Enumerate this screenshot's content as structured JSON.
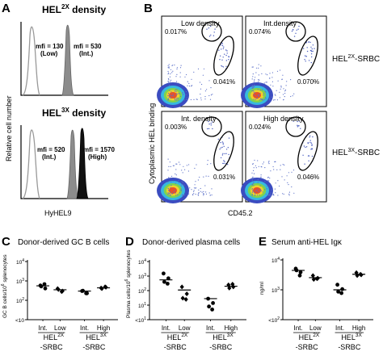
{
  "panels": {
    "A": {
      "letter": "A",
      "top": {
        "title": "HEL",
        "title_sup": "2X",
        "title_rest": " density",
        "mfi_low": "mfi = 130",
        "mfi_low_sub": "(Low)",
        "mfi_int": "mfi = 530",
        "mfi_int_sub": "(Int.)"
      },
      "bottom": {
        "title": "HEL",
        "title_sup": "3X",
        "title_rest": " density",
        "mfi_int": "mfi = 520",
        "mfi_int_sub": "(Int.)",
        "mfi_high": "mfi = 1570",
        "mfi_high_sub": "(High)"
      },
      "ylabel": "Relative cell number",
      "xlabel": "HyHEL9"
    },
    "B": {
      "letter": "B",
      "plots": [
        {
          "title": "Low density",
          "gate_top": "0.017%",
          "gate_right": "0.041%"
        },
        {
          "title": "Int.density",
          "gate_top": "0.074%",
          "gate_right": "0.070%"
        },
        {
          "title": "Int. density",
          "gate_top": "0.003%",
          "gate_right": "0.031%"
        },
        {
          "title": "High density",
          "gate_top": "0.024%",
          "gate_right": "0.046%"
        }
      ],
      "row_labels": [
        {
          "main": "HEL",
          "sup": "2X",
          "rest": "-SRBC"
        },
        {
          "main": "HEL",
          "sup": "3X",
          "rest": "-SRBC"
        }
      ],
      "ylabel": "Cytoplasmic HEL binding",
      "xlabel": "CD45.2"
    }
  },
  "chart_data": [
    {
      "type": "scatter",
      "letter": "C",
      "title": "Donor-derived GC B cells",
      "ylabel": "GC B cells/10⁶ splenocytes",
      "ylabel_parts": {
        "a": "GC B cells/10",
        "sup": "6",
        "b": " splenocytes"
      },
      "yscale": "log",
      "ylim": [
        10,
        10000
      ],
      "yticks": [
        {
          "base": "10",
          "exp": "4"
        },
        {
          "base": "10",
          "exp": "3"
        },
        {
          "base": "10",
          "exp": "2"
        },
        {
          "base": "<10",
          "exp": ""
        }
      ],
      "categories": [
        "Int.",
        "Low",
        "Int.",
        "High"
      ],
      "groups": [
        {
          "main": "HEL",
          "sup": "2X",
          "sub": "-SRBC"
        },
        {
          "main": "HEL",
          "sup": "3X",
          "sub": "-SRBC"
        }
      ],
      "series": [
        {
          "values": [
            [
              580,
              410,
              520,
              680
            ],
            [
              400,
              300,
              360,
              280
            ],
            [
              300,
              230,
              310,
              230
            ],
            [
              430,
              470,
              400,
              500
            ]
          ],
          "medians": [
            560,
            350,
            300,
            440
          ]
        }
      ]
    },
    {
      "type": "scatter",
      "letter": "D",
      "title": "Donor-derived plasma cells",
      "ylabel": "Plasma cells/10⁶ splenocytes",
      "ylabel_parts": {
        "a": "Plasma cells/10",
        "sup": "6",
        "b": " splenocytes"
      },
      "yscale": "log",
      "ylim": [
        1,
        10000
      ],
      "yticks": [
        {
          "base": "10",
          "exp": "4"
        },
        {
          "base": "10",
          "exp": "3"
        },
        {
          "base": "10",
          "exp": "2"
        },
        {
          "base": "10",
          "exp": "1"
        },
        {
          "base": "<10",
          "exp": "1"
        }
      ],
      "categories": [
        "Int.",
        "Low",
        "Int.",
        "High"
      ],
      "groups": [
        {
          "main": "HEL",
          "sup": "2X",
          "sub": "-SRBC"
        },
        {
          "main": "HEL",
          "sup": "3X",
          "sub": "-SRBC"
        }
      ],
      "series": [
        {
          "values": [
            [
              1500,
              700,
              400,
              300
            ],
            [
              180,
              60,
              30,
              25
            ],
            [
              28,
              14,
              8,
              5
            ],
            [
              250,
              180,
              150,
              280
            ]
          ],
          "medians": [
            550,
            110,
            28,
            200
          ]
        }
      ]
    },
    {
      "type": "scatter",
      "letter": "E",
      "title": "Serum anti-HEL Igκ",
      "ylabel": "ng/ml",
      "yscale": "log",
      "ylim": [
        10,
        100000
      ],
      "yticks": [
        {
          "base": "10",
          "exp": "4"
        },
        {
          "base": "10",
          "exp": "3"
        },
        {
          "base": "<10",
          "exp": "2"
        }
      ],
      "categories": [
        "Int.",
        "Low",
        "Int.",
        "High"
      ],
      "groups": [
        {
          "main": "HEL",
          "sup": "2X",
          "sub": "-SRBC"
        },
        {
          "main": "HEL",
          "sup": "3X",
          "sub": "-SRBC"
        }
      ],
      "series": [
        {
          "values": [
            [
              26000,
              15000,
              20000,
              9000
            ],
            [
              9000,
              6000,
              5000,
              5500
            ],
            [
              2200,
              1100,
              750,
              600
            ],
            [
              14000,
              10000,
              9000,
              11000
            ]
          ],
          "medians": [
            20000,
            6500,
            1000,
            11000
          ]
        }
      ]
    }
  ],
  "colors": {
    "low_curve": "#999999",
    "int_fill": "#8c8c8c",
    "high_fill": "#111111",
    "dot": "#000000"
  }
}
